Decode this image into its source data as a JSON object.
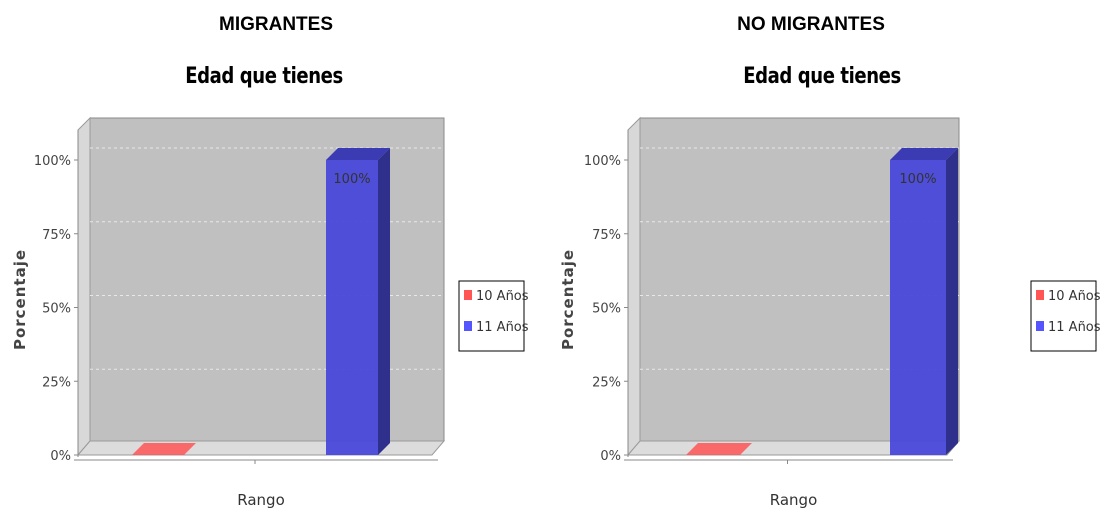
{
  "chart_data": [
    {
      "type": "bar",
      "group_title": "MIGRANTES",
      "title": "Edad que tienes",
      "xlabel": "Rango",
      "ylabel": "Porcentaje",
      "ylim": [
        0,
        100
      ],
      "yticks": [
        "0%",
        "25%",
        "50%",
        "75%",
        "100%"
      ],
      "legend_position": "right",
      "grid": true,
      "series": [
        {
          "name": "10 Años",
          "color": "#ff5555",
          "value": 0,
          "label": ""
        },
        {
          "name": "11 Años",
          "color": "#5555ff",
          "value": 100,
          "label": "100%"
        }
      ]
    },
    {
      "type": "bar",
      "group_title": "NO MIGRANTES",
      "title": "Edad que tienes",
      "xlabel": "Rango",
      "ylabel": "Porcentaje",
      "ylim": [
        0,
        100
      ],
      "yticks": [
        "0%",
        "25%",
        "50%",
        "75%",
        "100%"
      ],
      "legend_position": "right",
      "grid": true,
      "series": [
        {
          "name": "10 Años",
          "color": "#ff5555",
          "value": 0,
          "label": ""
        },
        {
          "name": "11 Años",
          "color": "#5555ff",
          "value": 100,
          "label": "100%"
        }
      ]
    }
  ]
}
